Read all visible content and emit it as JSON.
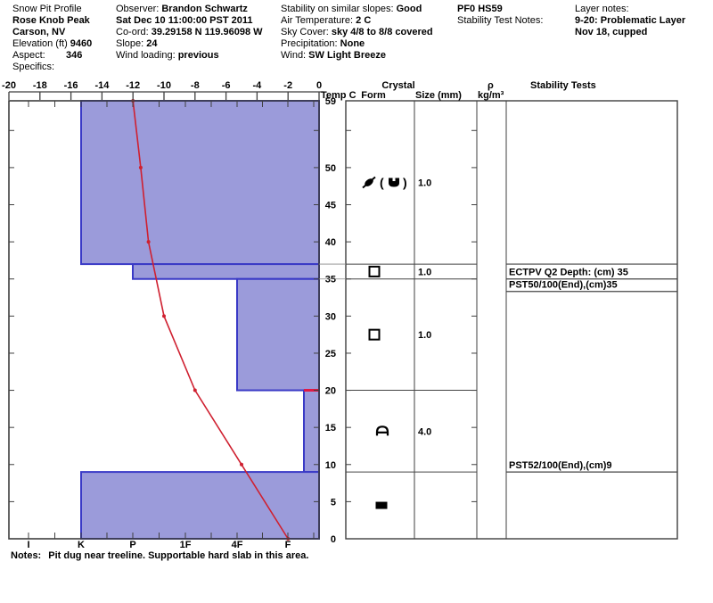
{
  "header": {
    "columns": [
      {
        "rows": [
          {
            "label": "Snow Pit Profile",
            "value": ""
          },
          {
            "label": "",
            "value": "Rose Knob Peak"
          },
          {
            "label": "",
            "value": "Carson, NV"
          },
          {
            "label": "Elevation (ft)",
            "value": "9460"
          },
          {
            "label": "Aspect:",
            "value": "346"
          },
          {
            "label": "Specifics:",
            "value": ""
          }
        ]
      },
      {
        "rows": [
          {
            "label": "Observer:",
            "value": "Brandon Schwartz"
          },
          {
            "label": "",
            "value": "Sat Dec 10 11:00:00 PST 2011"
          },
          {
            "label": "Co-ord:",
            "value": "39.29158 N 119.96098 W"
          },
          {
            "label": "Slope:",
            "value": "24"
          },
          {
            "label": "Wind loading:",
            "value": "previous"
          }
        ]
      },
      {
        "rows": [
          {
            "label": "Stability on similar slopes:",
            "value": "Good"
          },
          {
            "label": "Air Temperature:",
            "value": "2 C"
          },
          {
            "label": "Sky Cover:",
            "value": "sky 4/8 to 8/8 covered"
          },
          {
            "label": "Precipitation:",
            "value": "None"
          },
          {
            "label": "Wind:",
            "value": "SW Light Breeze"
          }
        ]
      },
      {
        "rows": [
          {
            "label": "",
            "value": "PF0 HS59"
          },
          {
            "label": "Stability Test Notes:",
            "value": ""
          }
        ]
      },
      {
        "rows": [
          {
            "label": "Layer notes:",
            "value": ""
          },
          {
            "label": "",
            "value": "9-20: Problematic Layer"
          },
          {
            "label": "",
            "value": "Nov 18, cupped"
          }
        ]
      }
    ]
  },
  "panel_headers": {
    "temp": "Temp C",
    "crystal_line1": "Crystal",
    "crystal_line2": "Form",
    "size": "Size (mm)",
    "rho_line1": "ρ",
    "rho_line2": "kg/m³",
    "stability": "Stability Tests"
  },
  "notes": {
    "label": "Notes:",
    "text": "Pit dug near treeline. Supportable hard slab in this area."
  },
  "colors": {
    "layer_fill": "#9b9bda",
    "layer_border": "#3a3ac6",
    "temp_line": "#cf2030",
    "red_flag": "#e11845",
    "axis": "#3f3f3f"
  },
  "chart_data": {
    "type": "bar",
    "title": "Snow Pit Profile (hardness profile with temperature line)",
    "depth_axis": {
      "unit": "cm",
      "min": 0,
      "max": 59,
      "tick_labels": [
        59,
        50,
        45,
        40,
        35,
        30,
        25,
        20,
        15,
        10,
        5,
        0
      ]
    },
    "temp_axis": {
      "label": "Temp C",
      "min": -20,
      "max": 0,
      "tick_labels": [
        -20,
        -18,
        -16,
        -14,
        -12,
        -10,
        -8,
        -6,
        -4,
        -2,
        0
      ]
    },
    "hardness_axis": {
      "tick_labels": [
        "I",
        "K",
        "P",
        "1F",
        "4F",
        "F"
      ]
    },
    "layers": [
      {
        "top_cm": 59,
        "bottom_cm": 37,
        "hardness": "K",
        "crystal_symbol": "df-rg",
        "crystal_form_name": "decomposing fragments (rounded grains)",
        "size_mm": "1.0",
        "red_top": false
      },
      {
        "top_cm": 37,
        "bottom_cm": 35,
        "hardness": "P",
        "crystal_symbol": "facets",
        "crystal_form_name": "faceted crystals",
        "size_mm": "1.0",
        "red_top": false
      },
      {
        "top_cm": 35,
        "bottom_cm": 20,
        "hardness": "4F",
        "crystal_symbol": "facets",
        "crystal_form_name": "faceted crystals",
        "size_mm": "1.0",
        "red_top": false
      },
      {
        "top_cm": 20,
        "bottom_cm": 9,
        "hardness": "F-",
        "crystal_symbol": "depth-hoar",
        "crystal_form_name": "depth hoar (cup crystals)",
        "size_mm": "4.0",
        "red_top": true
      },
      {
        "top_cm": 9,
        "bottom_cm": 0,
        "hardness": "K",
        "crystal_symbol": "crust",
        "crystal_form_name": "ice crust",
        "size_mm": "",
        "red_top": false
      }
    ],
    "temperature_profile": [
      {
        "depth_cm": 59,
        "temp_c": -12
      },
      {
        "depth_cm": 50,
        "temp_c": -11.5
      },
      {
        "depth_cm": 40,
        "temp_c": -11
      },
      {
        "depth_cm": 30,
        "temp_c": -10
      },
      {
        "depth_cm": 20,
        "temp_c": -8
      },
      {
        "depth_cm": 10,
        "temp_c": -5
      },
      {
        "depth_cm": 0,
        "temp_c": -2
      }
    ],
    "stability_tests": [
      {
        "text": "ECTPV Q2 Depth: (cm) 35",
        "depth_cm": 35,
        "row": 0,
        "top_border_depth_cm": 37
      },
      {
        "text": "PST50/100(End),(cm)35",
        "depth_cm": 35,
        "row": 1
      },
      {
        "text": "PST52/100(End),(cm)9",
        "depth_cm": 9,
        "row": 0
      }
    ]
  }
}
